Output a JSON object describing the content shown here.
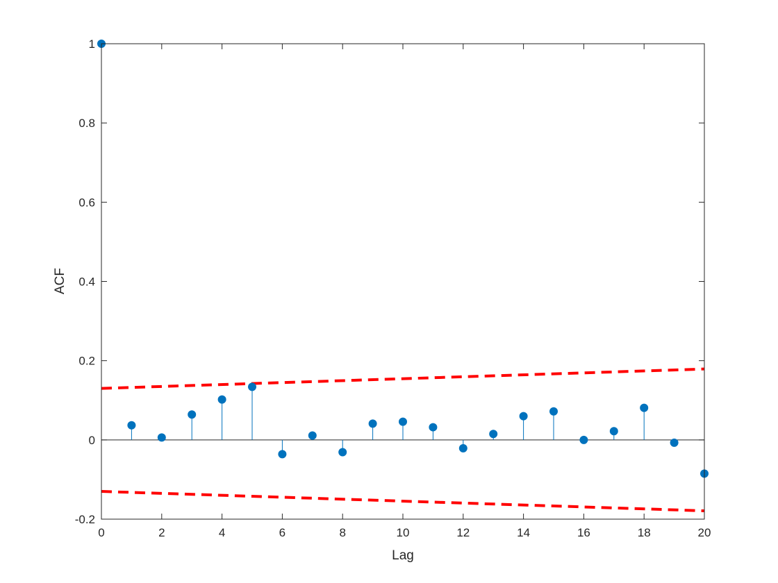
{
  "chart_data": {
    "type": "stem",
    "title": "",
    "xlabel": "Lag",
    "ylabel": "ACF",
    "xlim": [
      0,
      20
    ],
    "ylim": [
      -0.2,
      1
    ],
    "xticks": [
      0,
      2,
      4,
      6,
      8,
      10,
      12,
      14,
      16,
      18,
      20
    ],
    "yticks": [
      -0.2,
      0,
      0.2,
      0.4,
      0.6,
      0.8,
      1
    ],
    "ytick_labels": [
      "-0.2",
      "0",
      "0.2",
      "0.4",
      "0.6",
      "0.8",
      "1"
    ],
    "series": [
      {
        "x": [
          0,
          1,
          2,
          3,
          4,
          5,
          6,
          7,
          8,
          9,
          10,
          11,
          12,
          13,
          14,
          15,
          16,
          17,
          18,
          19,
          20
        ],
        "values": [
          1.0,
          0.037,
          0.006,
          0.064,
          0.102,
          0.134,
          -0.036,
          0.011,
          -0.031,
          0.041,
          0.046,
          0.032,
          -0.021,
          0.015,
          0.06,
          0.072,
          0.0,
          0.022,
          0.081,
          -0.007,
          -0.085
        ],
        "color": "#0072BD"
      }
    ],
    "confidence_bounds": {
      "x": [
        0,
        20
      ],
      "upper": [
        0.13,
        0.179
      ],
      "lower": [
        -0.13,
        -0.179
      ],
      "color": "#FF0000",
      "style": "dashed"
    },
    "grid": false,
    "legend": "none"
  }
}
